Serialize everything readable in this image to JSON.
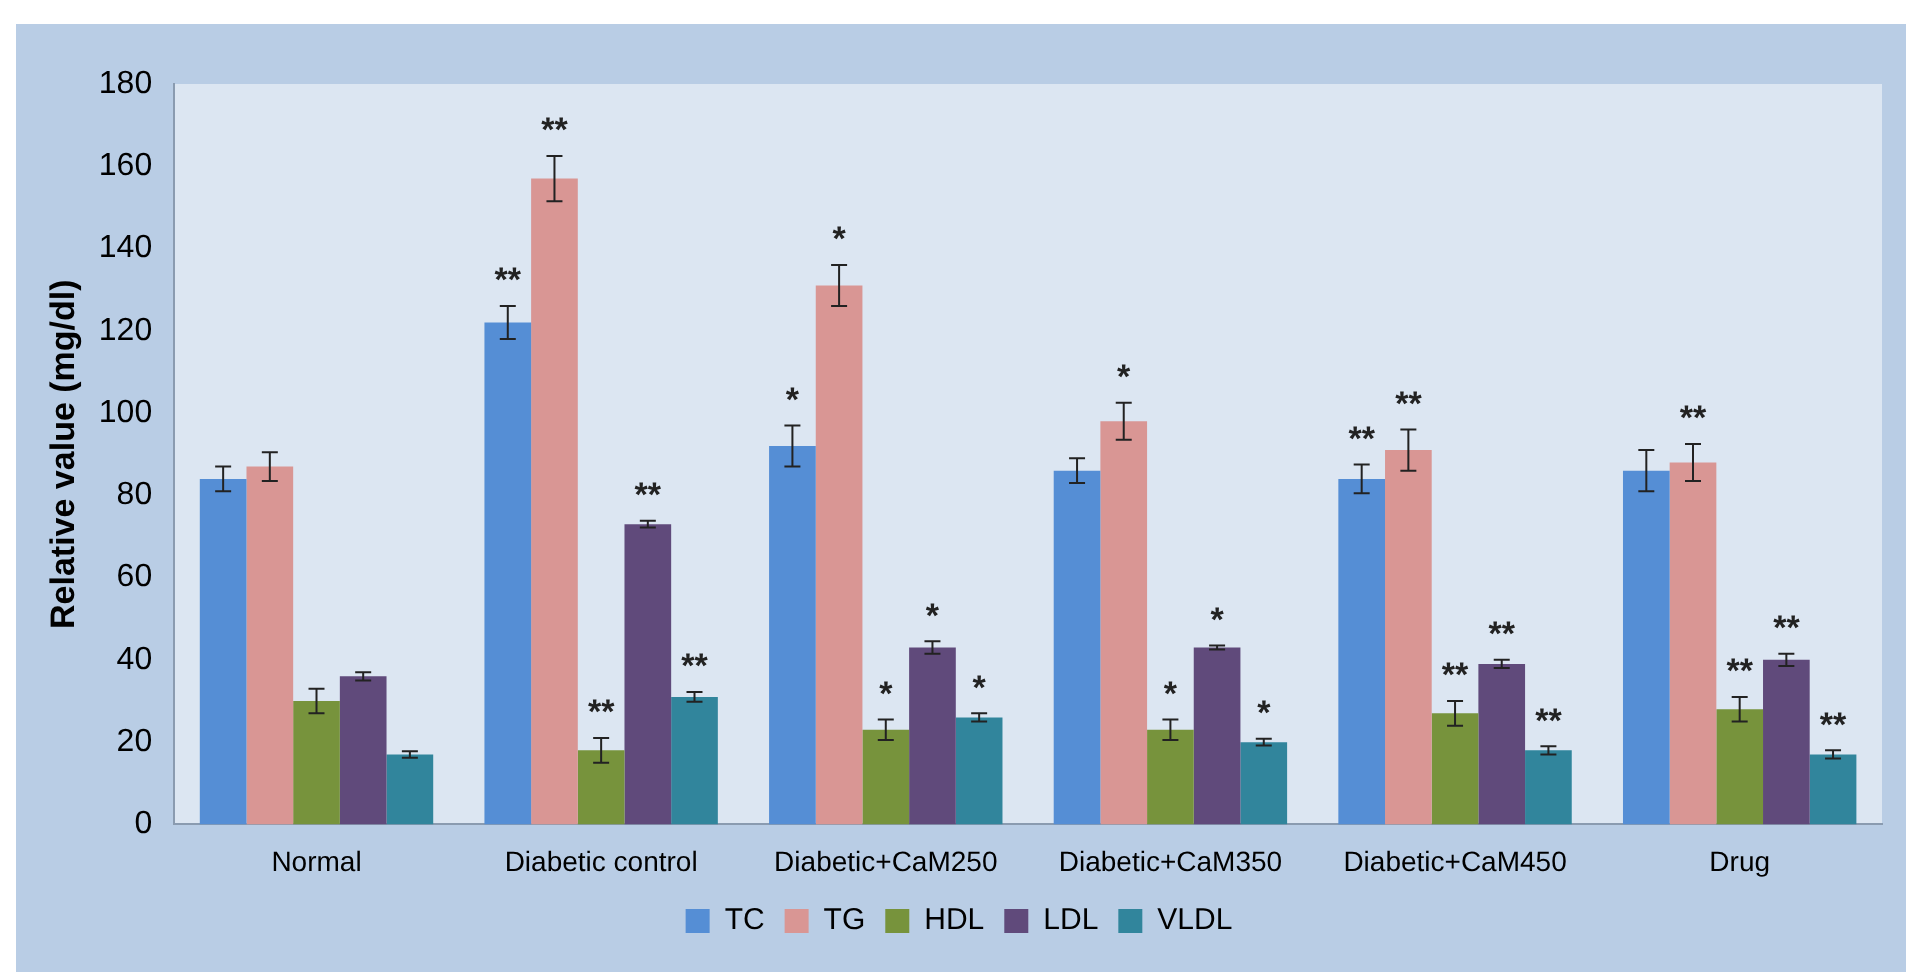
{
  "chart_data": {
    "type": "bar",
    "ylabel": "Relative value (mg/dl)",
    "categories": [
      "Normal",
      "Diabetic control",
      "Diabetic+CaM250",
      "Diabetic+CaM350",
      "Diabetic+CaM450",
      "Drug"
    ],
    "series": [
      {
        "name": "TC",
        "color": "#558ed5",
        "values": [
          84,
          122,
          92,
          86,
          84,
          86
        ],
        "errors": [
          3,
          4,
          5,
          3,
          3.5,
          5
        ],
        "value_labels": [
          null,
          "**",
          "*",
          null,
          "**",
          null
        ]
      },
      {
        "name": "TG",
        "color": "#d99694",
        "values": [
          87,
          157,
          131,
          98,
          91,
          88
        ],
        "errors": [
          3.5,
          5.5,
          5,
          4.5,
          5,
          4.5
        ],
        "value_labels": [
          null,
          "**",
          "*",
          "*",
          "**",
          "**"
        ]
      },
      {
        "name": "HDL",
        "color": "#77933c",
        "values": [
          30,
          18,
          23,
          23,
          27,
          28
        ],
        "errors": [
          3,
          3,
          2.5,
          2.5,
          3,
          3
        ],
        "value_labels": [
          null,
          "**",
          "*",
          "*",
          "**",
          "**"
        ]
      },
      {
        "name": "LDL",
        "color": "#604a7b",
        "values": [
          36,
          73,
          43,
          43,
          39,
          40
        ],
        "errors": [
          1,
          0.8,
          1.5,
          0.5,
          1,
          1.5
        ],
        "value_labels": [
          null,
          "**",
          "*",
          "*",
          "**",
          "**"
        ]
      },
      {
        "name": "VLDL",
        "color": "#31859c",
        "values": [
          17,
          31,
          26,
          20,
          18,
          17
        ],
        "errors": [
          0.8,
          1.2,
          1,
          0.8,
          1,
          1
        ],
        "value_labels": [
          null,
          "**",
          "*",
          "*",
          "**",
          "**"
        ]
      }
    ],
    "ylim": [
      0,
      180
    ],
    "yticks": [
      0,
      20,
      40,
      60,
      80,
      100,
      120,
      140,
      160,
      180
    ],
    "grid": false,
    "legend": "bottom"
  }
}
